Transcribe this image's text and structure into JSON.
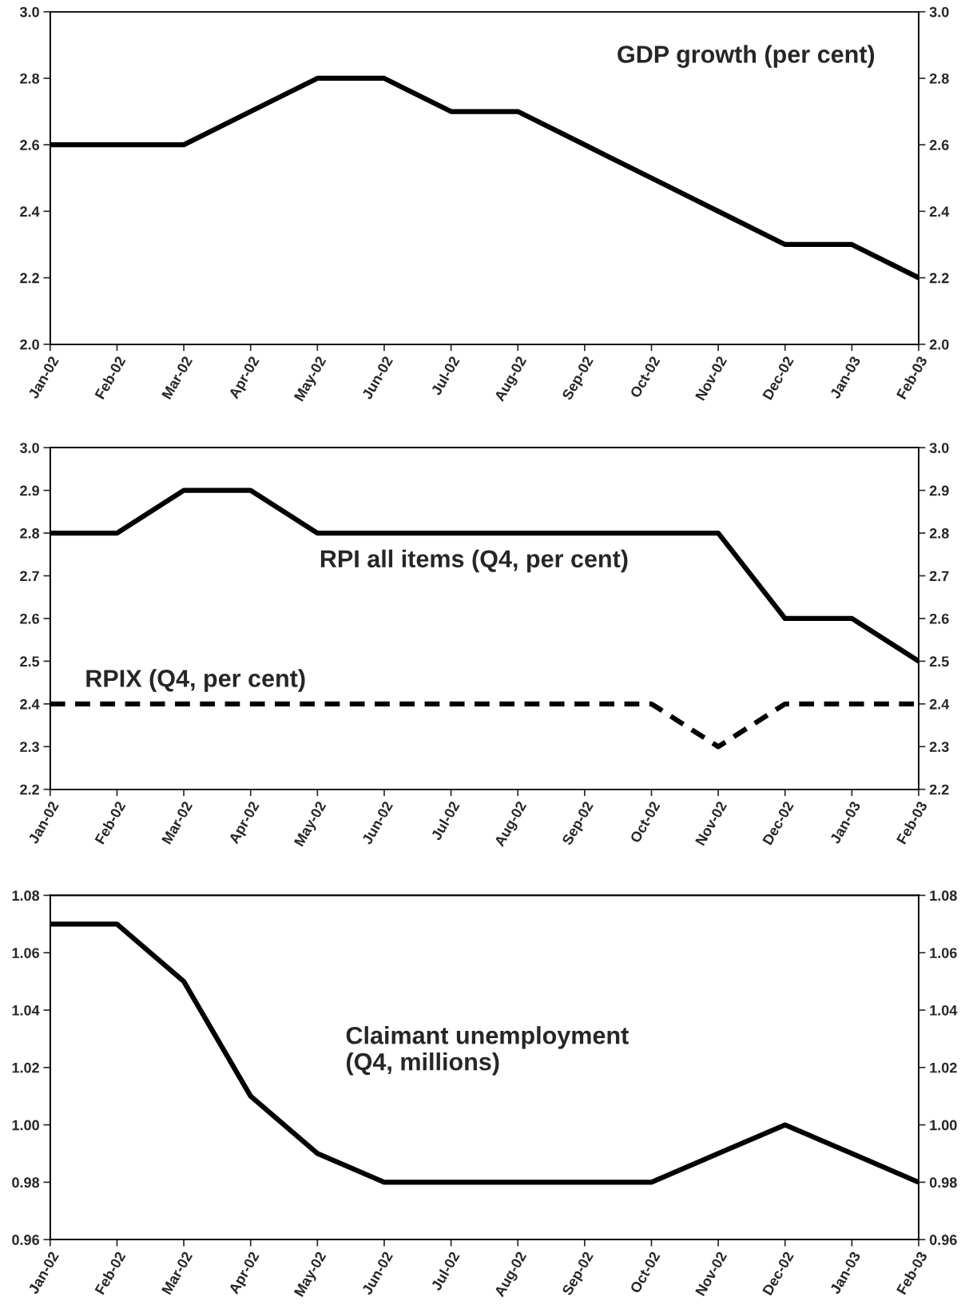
{
  "chart_data": [
    {
      "type": "line",
      "title": "GDP growth (per cent)",
      "categories": [
        "Jan-02",
        "Feb-02",
        "Mar-02",
        "Apr-02",
        "May-02",
        "Jun-02",
        "Jul-02",
        "Aug-02",
        "Sep-02",
        "Oct-02",
        "Nov-02",
        "Dec-02",
        "Jan-03",
        "Feb-03"
      ],
      "series": [
        {
          "color": "#000000",
          "values": [
            2.6,
            2.6,
            2.6,
            2.7,
            2.8,
            2.8,
            2.7,
            2.7,
            2.6,
            2.5,
            2.4,
            2.3,
            2.3,
            2.2
          ]
        }
      ],
      "ylim": [
        2.0,
        3.0
      ],
      "yticks": [
        {
          "value": 2.0,
          "label": "2.0"
        },
        2.2,
        2.4,
        2.6,
        2.8,
        {
          "value": 3.0,
          "label": "3.0"
        }
      ],
      "y2lim": [
        2.0,
        3.0
      ],
      "y2ticks": [
        {
          "value": 2.0,
          "label": "2.0"
        },
        2.2,
        2.4,
        2.6,
        2.8,
        {
          "value": 3.0,
          "label": "3.0"
        }
      ],
      "grid": false,
      "legend": false
    },
    {
      "type": "line",
      "categories": [
        "Jan-02",
        "Feb-02",
        "Mar-02",
        "Apr-02",
        "May-02",
        "Jun-02",
        "Jul-02",
        "Aug-02",
        "Sep-02",
        "Oct-02",
        "Nov-02",
        "Dec-02",
        "Jan-03",
        "Feb-03"
      ],
      "series": [
        {
          "name": "RPI all items (Q4, per cent)",
          "color": "#000000",
          "line_style": "solid",
          "values": [
            2.8,
            2.8,
            2.9,
            2.9,
            2.8,
            2.8,
            2.8,
            2.8,
            2.8,
            2.8,
            2.8,
            2.6,
            2.6,
            2.5
          ]
        },
        {
          "name": "RPIX (Q4, per cent)",
          "color": "#000000",
          "line_style": "dashed",
          "values": [
            2.4,
            2.4,
            2.4,
            2.4,
            2.4,
            2.4,
            2.4,
            2.4,
            2.4,
            2.4,
            2.3,
            2.4,
            2.4,
            2.4
          ]
        }
      ],
      "ylim": [
        2.2,
        3.0
      ],
      "yticks": [
        2.2,
        2.3,
        2.4,
        2.5,
        2.6,
        2.7,
        2.8,
        2.9,
        {
          "value": 3.0,
          "label": "3.0"
        }
      ],
      "y2lim": [
        2.2,
        3.0
      ],
      "y2ticks": [
        2.2,
        2.3,
        2.4,
        2.5,
        2.6,
        2.7,
        2.8,
        2.9,
        {
          "value": 3.0,
          "label": "3.0"
        }
      ],
      "grid": false,
      "legend": false
    },
    {
      "type": "line",
      "title": "Claimant unemployment\n(Q4, millions)",
      "categories": [
        "Jan-02",
        "Feb-02",
        "Mar-02",
        "Apr-02",
        "May-02",
        "Jun-02",
        "Jul-02",
        "Aug-02",
        "Sep-02",
        "Oct-02",
        "Nov-02",
        "Dec-02",
        "Jan-03",
        "Feb-03"
      ],
      "series": [
        {
          "color": "#000000",
          "values": [
            1.07,
            1.07,
            1.05,
            1.01,
            0.99,
            0.98,
            0.98,
            0.98,
            0.98,
            0.98,
            0.99,
            1.0,
            0.99,
            0.98
          ]
        }
      ],
      "ylim": [
        0.96,
        1.08
      ],
      "yticks": [
        0.96,
        0.98,
        {
          "value": 1.0,
          "label": "1.00"
        },
        1.02,
        1.04,
        1.06,
        1.08
      ],
      "y2lim": [
        0.96,
        1.08
      ],
      "y2ticks": [
        0.96,
        0.98,
        {
          "value": 1.0,
          "label": "1.00"
        },
        1.02,
        1.04,
        1.06,
        1.08
      ],
      "grid": false,
      "legend": false
    }
  ]
}
